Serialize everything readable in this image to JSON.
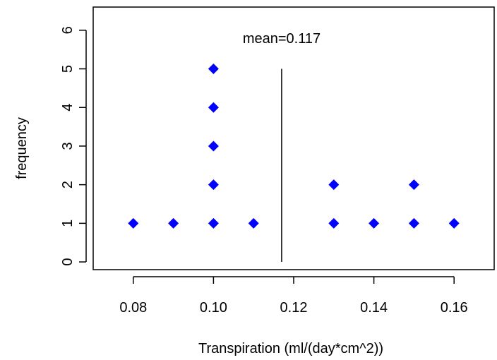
{
  "chart_data": {
    "type": "scatter",
    "marker": "diamond",
    "colors": {
      "points": "#0000ff",
      "axes": "#000000",
      "mean_line": "#000000"
    },
    "xlabel": "Transpiration (ml/(day*cm^2))",
    "ylabel": "frequency",
    "xlim": [
      0.07,
      0.17
    ],
    "ylim": [
      -0.2,
      6.6
    ],
    "xticks": [
      0.08,
      0.1,
      0.12,
      0.14,
      0.16
    ],
    "xtick_labels": [
      "0.08",
      "0.10",
      "0.12",
      "0.14",
      "0.16"
    ],
    "yticks": [
      0,
      1,
      2,
      3,
      4,
      5,
      6
    ],
    "ytick_labels": [
      "0",
      "1",
      "2",
      "3",
      "4",
      "5",
      "6"
    ],
    "points": [
      {
        "x": 0.08,
        "y": 1
      },
      {
        "x": 0.09,
        "y": 1
      },
      {
        "x": 0.1,
        "y": 1
      },
      {
        "x": 0.1,
        "y": 2
      },
      {
        "x": 0.1,
        "y": 3
      },
      {
        "x": 0.1,
        "y": 4
      },
      {
        "x": 0.1,
        "y": 5
      },
      {
        "x": 0.11,
        "y": 1
      },
      {
        "x": 0.13,
        "y": 1
      },
      {
        "x": 0.13,
        "y": 2
      },
      {
        "x": 0.14,
        "y": 1
      },
      {
        "x": 0.15,
        "y": 1
      },
      {
        "x": 0.15,
        "y": 2
      },
      {
        "x": 0.16,
        "y": 1
      }
    ],
    "mean_line": {
      "x": 0.117,
      "y_from": 0,
      "y_to": 5
    },
    "annotation": {
      "text": "mean=0.117",
      "x": 0.117,
      "y": 5.8
    },
    "grid": false,
    "legend": "none"
  }
}
